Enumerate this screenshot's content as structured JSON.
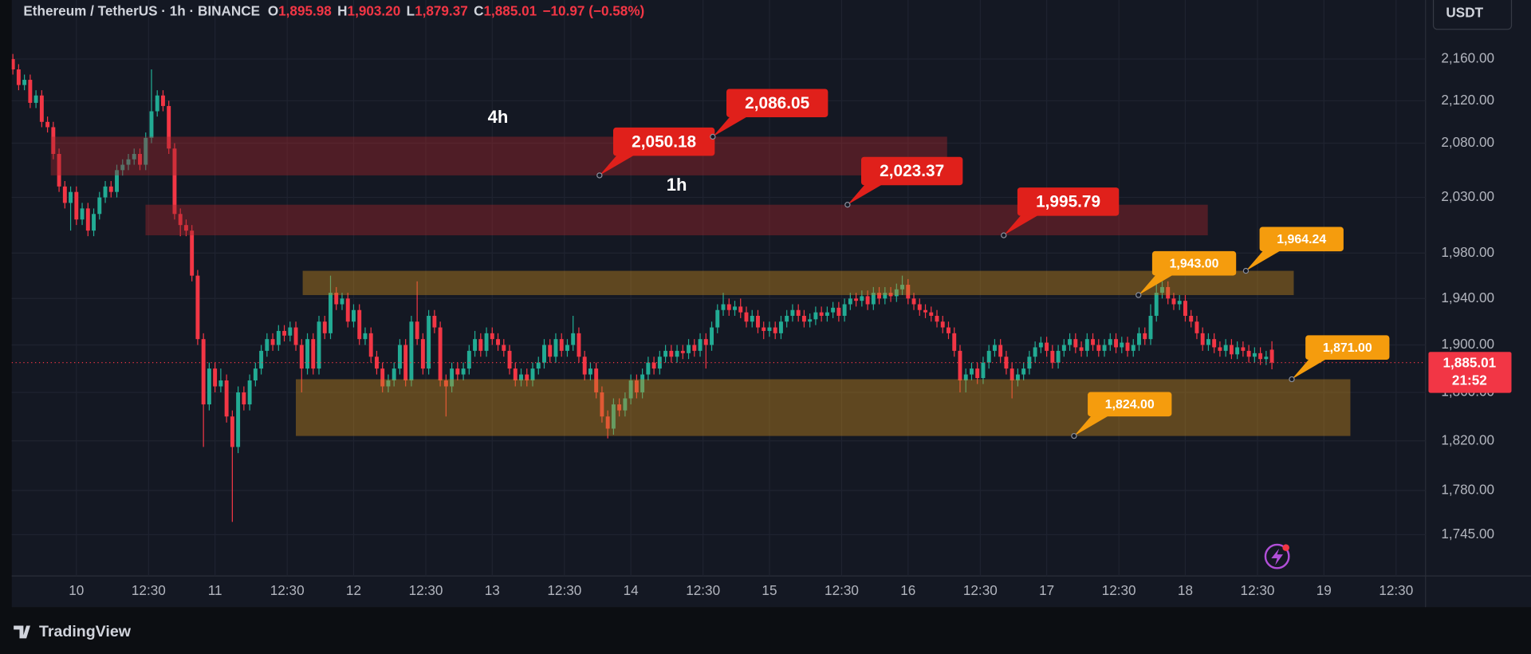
{
  "chart_data": {
    "type": "candlestick",
    "title": "Ethereum / TetherUS · 1h · BINANCE",
    "ohlc_header": [
      {
        "prefix": "O",
        "value": 1895.98,
        "label": "1,895.98"
      },
      {
        "prefix": "H",
        "value": 1903.2,
        "label": "1,903.20"
      },
      {
        "prefix": "L",
        "value": 1879.37,
        "label": "1,879.37"
      },
      {
        "prefix": "C",
        "value": 1885.01,
        "label": "1,885.01"
      }
    ],
    "change": {
      "value": -10.97,
      "label": "−10.97"
    },
    "change_pct": {
      "value": -0.58,
      "label": "(−0.58%)"
    },
    "currency": "USDT",
    "up_color": "#22ab94",
    "down_color": "#f23645",
    "log_scale": true,
    "grid": true,
    "xlim": [
      -11.2,
      233.6
    ],
    "xticks": [
      {
        "value": 0,
        "label": "10"
      },
      {
        "value": 12.5,
        "label": "12:30"
      },
      {
        "value": 24,
        "label": "11"
      },
      {
        "value": 36.5,
        "label": "12:30"
      },
      {
        "value": 48,
        "label": "12"
      },
      {
        "value": 60.5,
        "label": "12:30"
      },
      {
        "value": 72,
        "label": "13"
      },
      {
        "value": 84.5,
        "label": "12:30"
      },
      {
        "value": 96,
        "label": "14"
      },
      {
        "value": 108.5,
        "label": "12:30"
      },
      {
        "value": 120,
        "label": "15"
      },
      {
        "value": 132.5,
        "label": "12:30"
      },
      {
        "value": 144,
        "label": "16"
      },
      {
        "value": 156.5,
        "label": "12:30"
      },
      {
        "value": 168,
        "label": "17"
      },
      {
        "value": 180.5,
        "label": "12:30"
      },
      {
        "value": 192,
        "label": "18"
      },
      {
        "value": 204.5,
        "label": "12:30"
      },
      {
        "value": 216,
        "label": "19"
      },
      {
        "value": 228.5,
        "label": "12:30"
      }
    ],
    "ylim": [
      1713,
      2218
    ],
    "yticks": [
      {
        "value": 2160,
        "label": "2,160.00"
      },
      {
        "value": 2120,
        "label": "2,120.00"
      },
      {
        "value": 2080,
        "label": "2,080.00"
      },
      {
        "value": 2030,
        "label": "2,030.00"
      },
      {
        "value": 1980,
        "label": "1,980.00"
      },
      {
        "value": 1940,
        "label": "1,940.00"
      },
      {
        "value": 1900,
        "label": "1,900.00"
      },
      {
        "value": 1860,
        "label": "1,860.00"
      },
      {
        "value": 1820,
        "label": "1,820.00"
      },
      {
        "value": 1780,
        "label": "1,780.00"
      },
      {
        "value": 1745,
        "label": "1,745.00"
      }
    ],
    "x": [
      -11,
      -10,
      -9,
      -8,
      -7,
      -6,
      -5,
      -4,
      -3,
      -2,
      -1,
      0,
      1,
      2,
      3,
      4,
      5,
      6,
      7,
      8,
      9,
      10,
      11,
      12,
      13,
      14,
      15,
      16,
      17,
      18,
      19,
      20,
      21,
      22,
      23,
      24,
      25,
      26,
      27,
      28,
      29,
      30,
      31,
      32,
      33,
      34,
      35,
      36,
      37,
      38,
      39,
      40,
      41,
      42,
      43,
      44,
      45,
      46,
      47,
      48,
      49,
      50,
      51,
      52,
      53,
      54,
      55,
      56,
      57,
      58,
      59,
      60,
      61,
      62,
      63,
      64,
      65,
      66,
      67,
      68,
      69,
      70,
      71,
      72,
      73,
      74,
      75,
      76,
      77,
      78,
      79,
      80,
      81,
      82,
      83,
      84,
      85,
      86,
      87,
      88,
      89,
      90,
      91,
      92,
      93,
      94,
      95,
      96,
      97,
      98,
      99,
      100,
      101,
      102,
      103,
      104,
      105,
      106,
      107,
      108,
      109,
      110,
      111,
      112,
      113,
      114,
      115,
      116,
      117,
      118,
      119,
      120,
      121,
      122,
      123,
      124,
      125,
      126,
      127,
      128,
      129,
      130,
      131,
      132,
      133,
      134,
      135,
      136,
      137,
      138,
      139,
      140,
      141,
      142,
      143,
      144,
      145,
      146,
      147,
      148,
      149,
      150,
      151,
      152,
      153,
      154,
      155,
      156,
      157,
      158,
      159,
      160,
      161,
      162,
      163,
      164,
      165,
      166,
      167,
      168,
      169,
      170,
      171,
      172,
      173,
      174,
      175,
      176,
      177,
      178,
      179,
      180,
      181,
      182,
      183,
      184,
      185,
      186,
      187,
      188,
      189,
      190,
      191,
      192,
      193,
      194,
      195,
      196,
      197,
      198,
      199,
      200,
      201,
      202,
      203,
      204,
      205,
      206,
      207
    ],
    "open": [
      2160,
      2150,
      2135,
      2140,
      2118,
      2125,
      2100,
      2095,
      2070,
      2040,
      2025,
      2035,
      2010,
      2020,
      2000,
      2015,
      2030,
      2040,
      2035,
      2055,
      2060,
      2065,
      2070,
      2060,
      2085,
      2110,
      2125,
      2115,
      2075,
      2015,
      2005,
      2000,
      1960,
      1905,
      1850,
      1880,
      1865,
      1870,
      1840,
      1815,
      1860,
      1850,
      1870,
      1880,
      1895,
      1905,
      1900,
      1912,
      1908,
      1915,
      1900,
      1880,
      1905,
      1880,
      1920,
      1910,
      1945,
      1935,
      1940,
      1920,
      1930,
      1905,
      1910,
      1890,
      1880,
      1865,
      1870,
      1880,
      1900,
      1870,
      1920,
      1905,
      1880,
      1925,
      1915,
      1870,
      1865,
      1880,
      1875,
      1880,
      1895,
      1905,
      1895,
      1910,
      1905,
      1900,
      1895,
      1880,
      1870,
      1875,
      1870,
      1880,
      1885,
      1900,
      1890,
      1905,
      1895,
      1900,
      1910,
      1890,
      1875,
      1880,
      1860,
      1840,
      1830,
      1850,
      1845,
      1855,
      1870,
      1860,
      1875,
      1885,
      1880,
      1890,
      1895,
      1890,
      1895,
      1893,
      1900,
      1895,
      1905,
      1900,
      1915,
      1930,
      1935,
      1930,
      1933,
      1928,
      1920,
      1925,
      1915,
      1912,
      1915,
      1910,
      1920,
      1925,
      1930,
      1925,
      1920,
      1922,
      1928,
      1925,
      1928,
      1932,
      1925,
      1935,
      1940,
      1938,
      1942,
      1935,
      1945,
      1940,
      1945,
      1942,
      1948,
      1952,
      1940,
      1935,
      1930,
      1928,
      1925,
      1920,
      1915,
      1910,
      1895,
      1870,
      1875,
      1880,
      1872,
      1885,
      1895,
      1900,
      1890,
      1880,
      1870,
      1875,
      1880,
      1890,
      1898,
      1902,
      1895,
      1885,
      1895,
      1900,
      1905,
      1898,
      1895,
      1905,
      1900,
      1895,
      1900,
      1905,
      1898,
      1902,
      1895,
      1900,
      1910,
      1905,
      1925,
      1945,
      1950,
      1940,
      1935,
      1938,
      1925,
      1920,
      1910,
      1900,
      1905,
      1898,
      1895,
      1900,
      1892,
      1898,
      1895,
      1890,
      1893,
      1888,
      1895.98
    ],
    "high": [
      2165,
      2155,
      2145,
      2145,
      2130,
      2130,
      2105,
      2100,
      2075,
      2045,
      2040,
      2040,
      2025,
      2025,
      2020,
      2035,
      2045,
      2045,
      2060,
      2065,
      2070,
      2075,
      2075,
      2090,
      2150,
      2130,
      2130,
      2120,
      2080,
      2020,
      2010,
      2005,
      1965,
      1910,
      1885,
      1885,
      1880,
      1875,
      1845,
      1865,
      1865,
      1875,
      1885,
      1900,
      1910,
      1910,
      1917,
      1917,
      1920,
      1920,
      1905,
      1910,
      1910,
      1925,
      1925,
      1960,
      1950,
      1945,
      1945,
      1935,
      1935,
      1915,
      1915,
      1895,
      1885,
      1875,
      1885,
      1905,
      1905,
      1925,
      1955,
      1910,
      1930,
      1930,
      1920,
      1875,
      1885,
      1885,
      1885,
      1900,
      1912,
      1910,
      1915,
      1915,
      1910,
      1905,
      1900,
      1885,
      1880,
      1880,
      1885,
      1890,
      1905,
      1905,
      1910,
      1910,
      1905,
      1925,
      1915,
      1895,
      1885,
      1885,
      1865,
      1845,
      1855,
      1855,
      1860,
      1875,
      1875,
      1880,
      1890,
      1890,
      1895,
      1900,
      1900,
      1900,
      1900,
      1905,
      1905,
      1910,
      1910,
      1920,
      1935,
      1945,
      1940,
      1938,
      1940,
      1933,
      1930,
      1930,
      1920,
      1920,
      1920,
      1925,
      1930,
      1935,
      1935,
      1930,
      1927,
      1933,
      1933,
      1933,
      1937,
      1937,
      1940,
      1945,
      1945,
      1947,
      1947,
      1950,
      1950,
      1950,
      1950,
      1953,
      1960,
      1957,
      1945,
      1940,
      1935,
      1933,
      1930,
      1925,
      1920,
      1915,
      1900,
      1880,
      1885,
      1885,
      1890,
      1900,
      1905,
      1905,
      1895,
      1885,
      1880,
      1885,
      1895,
      1903,
      1907,
      1907,
      1900,
      1900,
      1905,
      1910,
      1910,
      1903,
      1910,
      1910,
      1905,
      1905,
      1910,
      1910,
      1907,
      1907,
      1905,
      1915,
      1915,
      1935,
      1955,
      1955,
      1955,
      1945,
      1943,
      1943,
      1930,
      1925,
      1915,
      1910,
      1910,
      1903,
      1905,
      1905,
      1903,
      1903,
      1900,
      1898,
      1898,
      1895,
      1903.2
    ],
    "low": [
      2145,
      2130,
      2130,
      2113,
      2113,
      2095,
      2090,
      2065,
      2035,
      2020,
      2000,
      2005,
      2005,
      1995,
      1995,
      2010,
      2025,
      2030,
      2030,
      2050,
      2055,
      2060,
      2055,
      2055,
      2080,
      2105,
      2110,
      2070,
      2010,
      1995,
      1995,
      1955,
      1900,
      1815,
      1845,
      1860,
      1860,
      1835,
      1755,
      1810,
      1845,
      1845,
      1865,
      1875,
      1890,
      1895,
      1895,
      1903,
      1903,
      1895,
      1860,
      1875,
      1875,
      1875,
      1905,
      1905,
      1930,
      1930,
      1915,
      1915,
      1900,
      1900,
      1885,
      1875,
      1860,
      1860,
      1865,
      1875,
      1865,
      1865,
      1900,
      1875,
      1875,
      1910,
      1865,
      1840,
      1860,
      1870,
      1870,
      1875,
      1890,
      1890,
      1890,
      1900,
      1895,
      1890,
      1875,
      1865,
      1865,
      1865,
      1865,
      1875,
      1880,
      1885,
      1885,
      1890,
      1890,
      1895,
      1885,
      1870,
      1870,
      1855,
      1835,
      1822,
      1825,
      1840,
      1840,
      1850,
      1855,
      1855,
      1870,
      1875,
      1875,
      1885,
      1885,
      1885,
      1888,
      1888,
      1890,
      1890,
      1880,
      1895,
      1910,
      1925,
      1925,
      1925,
      1923,
      1915,
      1915,
      1910,
      1905,
      1907,
      1905,
      1905,
      1915,
      1920,
      1920,
      1915,
      1915,
      1917,
      1920,
      1920,
      1923,
      1920,
      1920,
      1930,
      1933,
      1933,
      1930,
      1930,
      1935,
      1935,
      1937,
      1937,
      1943,
      1935,
      1930,
      1925,
      1923,
      1920,
      1915,
      1910,
      1905,
      1890,
      1860,
      1860,
      1870,
      1867,
      1867,
      1880,
      1890,
      1885,
      1875,
      1855,
      1865,
      1870,
      1875,
      1885,
      1893,
      1890,
      1880,
      1880,
      1890,
      1895,
      1893,
      1890,
      1890,
      1895,
      1890,
      1890,
      1895,
      1893,
      1893,
      1890,
      1890,
      1895,
      1900,
      1900,
      1920,
      1940,
      1935,
      1930,
      1930,
      1920,
      1915,
      1905,
      1895,
      1895,
      1893,
      1890,
      1890,
      1888,
      1888,
      1890,
      1885,
      1885,
      1883,
      1883,
      1879.37
    ],
    "close": [
      2150,
      2135,
      2140,
      2118,
      2125,
      2100,
      2095,
      2070,
      2040,
      2025,
      2035,
      2010,
      2020,
      2000,
      2015,
      2030,
      2040,
      2035,
      2055,
      2060,
      2065,
      2070,
      2060,
      2085,
      2110,
      2125,
      2115,
      2075,
      2015,
      2005,
      2000,
      1960,
      1905,
      1850,
      1880,
      1865,
      1870,
      1840,
      1815,
      1860,
      1850,
      1870,
      1880,
      1895,
      1905,
      1900,
      1912,
      1908,
      1915,
      1900,
      1880,
      1905,
      1880,
      1920,
      1910,
      1945,
      1935,
      1940,
      1920,
      1930,
      1905,
      1910,
      1890,
      1880,
      1865,
      1870,
      1880,
      1900,
      1870,
      1920,
      1905,
      1880,
      1925,
      1915,
      1870,
      1865,
      1880,
      1875,
      1880,
      1895,
      1905,
      1895,
      1910,
      1905,
      1900,
      1895,
      1880,
      1870,
      1875,
      1870,
      1880,
      1885,
      1900,
      1890,
      1905,
      1895,
      1900,
      1910,
      1890,
      1875,
      1880,
      1860,
      1840,
      1830,
      1850,
      1845,
      1855,
      1870,
      1860,
      1875,
      1885,
      1880,
      1890,
      1895,
      1890,
      1895,
      1893,
      1900,
      1895,
      1905,
      1900,
      1915,
      1930,
      1935,
      1930,
      1933,
      1928,
      1920,
      1925,
      1915,
      1912,
      1915,
      1910,
      1920,
      1925,
      1930,
      1925,
      1920,
      1922,
      1928,
      1925,
      1928,
      1932,
      1925,
      1935,
      1940,
      1938,
      1942,
      1935,
      1945,
      1940,
      1945,
      1942,
      1948,
      1952,
      1940,
      1935,
      1930,
      1928,
      1925,
      1920,
      1915,
      1910,
      1895,
      1870,
      1875,
      1880,
      1872,
      1885,
      1895,
      1900,
      1890,
      1880,
      1870,
      1875,
      1880,
      1890,
      1898,
      1902,
      1895,
      1885,
      1895,
      1900,
      1905,
      1898,
      1895,
      1905,
      1900,
      1895,
      1900,
      1905,
      1898,
      1902,
      1895,
      1900,
      1910,
      1905,
      1925,
      1945,
      1950,
      1940,
      1935,
      1938,
      1925,
      1920,
      1910,
      1900,
      1905,
      1898,
      1895,
      1900,
      1892,
      1898,
      1895,
      1890,
      1893,
      1888,
      1890,
      1885.01
    ],
    "zones": [
      {
        "name": "4h",
        "color": "#a3262a",
        "callout_color": "#e0201b",
        "levels": [
          2050.18,
          2086.05
        ],
        "level_labels": [
          "2,050.18",
          "2,086.05"
        ]
      },
      {
        "name": "1h",
        "color": "#a3262a",
        "callout_color": "#e0201b",
        "levels": [
          1995.79,
          2023.37
        ],
        "level_labels": [
          "1,995.79",
          "2,023.37"
        ]
      },
      {
        "color": "#c98a1c",
        "callout_color": "#f59c0d",
        "levels": [
          1943,
          1964.24
        ],
        "level_labels": [
          "1,943.00",
          "1,964.24"
        ]
      },
      {
        "color": "#c98a1c",
        "callout_color": "#f59c0d",
        "levels": [
          1824,
          1871
        ],
        "level_labels": [
          "1,824.00",
          "1,871.00"
        ]
      }
    ],
    "last_price": {
      "value": 1885.01,
      "label": "1,885.01"
    },
    "countdown": "21:52"
  },
  "footer": {
    "brand": "TradingView"
  }
}
